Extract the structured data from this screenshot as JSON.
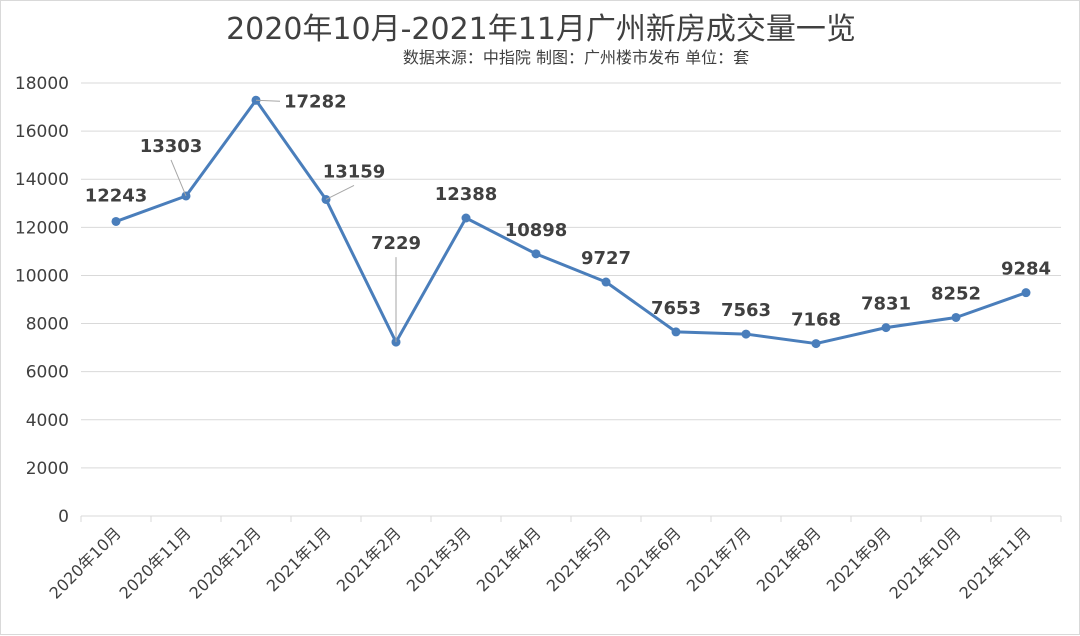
{
  "chart_data": {
    "type": "line",
    "title": "2020年10月-2021年11月广州新房成交量一览",
    "subtitle": "数据来源：中指院 制图：广州楼市发布 单位：套",
    "categories": [
      "2020年10月",
      "2020年11月",
      "2020年12月",
      "2021年1月",
      "2021年2月",
      "2021年3月",
      "2021年4月",
      "2021年5月",
      "2021年6月",
      "2021年7月",
      "2021年8月",
      "2021年9月",
      "2021年10月",
      "2021年11月"
    ],
    "series": [
      {
        "values": [
          12243,
          13303,
          17282,
          13159,
          7229,
          12388,
          10898,
          9727,
          7653,
          7563,
          7168,
          7831,
          8252,
          9284
        ]
      }
    ],
    "yticks": [
      "0",
      "2000",
      "4000",
      "6000",
      "8000",
      "10000",
      "12000",
      "14000",
      "16000",
      "18000"
    ],
    "ylim": [
      0,
      18000
    ],
    "grid": true,
    "line_color": "#4a7ebb",
    "grid_color": "#d9d9d9"
  }
}
